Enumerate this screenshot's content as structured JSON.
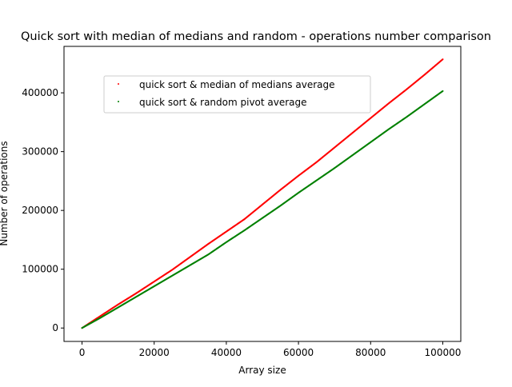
{
  "chart_data": {
    "type": "scatter",
    "title": "Quick sort with median of medians and random - operations number comparison",
    "xlabel": "Array size",
    "ylabel": "Number of operations",
    "xlim": [
      -5000,
      105000
    ],
    "ylim": [
      -22800,
      479000
    ],
    "xticks": [
      0,
      20000,
      40000,
      60000,
      80000,
      100000
    ],
    "xtick_labels": [
      "0",
      "20000",
      "40000",
      "60000",
      "80000",
      "100000"
    ],
    "yticks": [
      0,
      100000,
      200000,
      300000,
      400000
    ],
    "ytick_labels": [
      "0",
      "100000",
      "200000",
      "300000",
      "400000"
    ],
    "grid": false,
    "legend_position": "upper-left-inset",
    "series": [
      {
        "name": "quick sort & median of medians average",
        "color": "#ff0000",
        "marker": "point",
        "x": [
          0,
          5000,
          10000,
          15000,
          20000,
          25000,
          30000,
          35000,
          40000,
          45000,
          50000,
          55000,
          60000,
          65000,
          70000,
          75000,
          80000,
          85000,
          90000,
          95000,
          100000
        ],
        "y": [
          0,
          20000,
          40000,
          59000,
          79000,
          99000,
          121000,
          143000,
          164000,
          185000,
          210000,
          235000,
          259000,
          282000,
          307000,
          332000,
          357000,
          382000,
          406000,
          431000,
          457000
        ]
      },
      {
        "name": "quick sort & random pivot average",
        "color": "#008000",
        "marker": "point",
        "x": [
          0,
          5000,
          10000,
          15000,
          20000,
          25000,
          30000,
          35000,
          40000,
          45000,
          50000,
          55000,
          60000,
          65000,
          70000,
          75000,
          80000,
          85000,
          90000,
          95000,
          100000
        ],
        "y": [
          0,
          17000,
          35000,
          53000,
          71000,
          89000,
          107000,
          125000,
          146000,
          166000,
          187000,
          208000,
          230000,
          251000,
          272000,
          294000,
          316000,
          338000,
          359000,
          381000,
          403000
        ]
      }
    ]
  }
}
